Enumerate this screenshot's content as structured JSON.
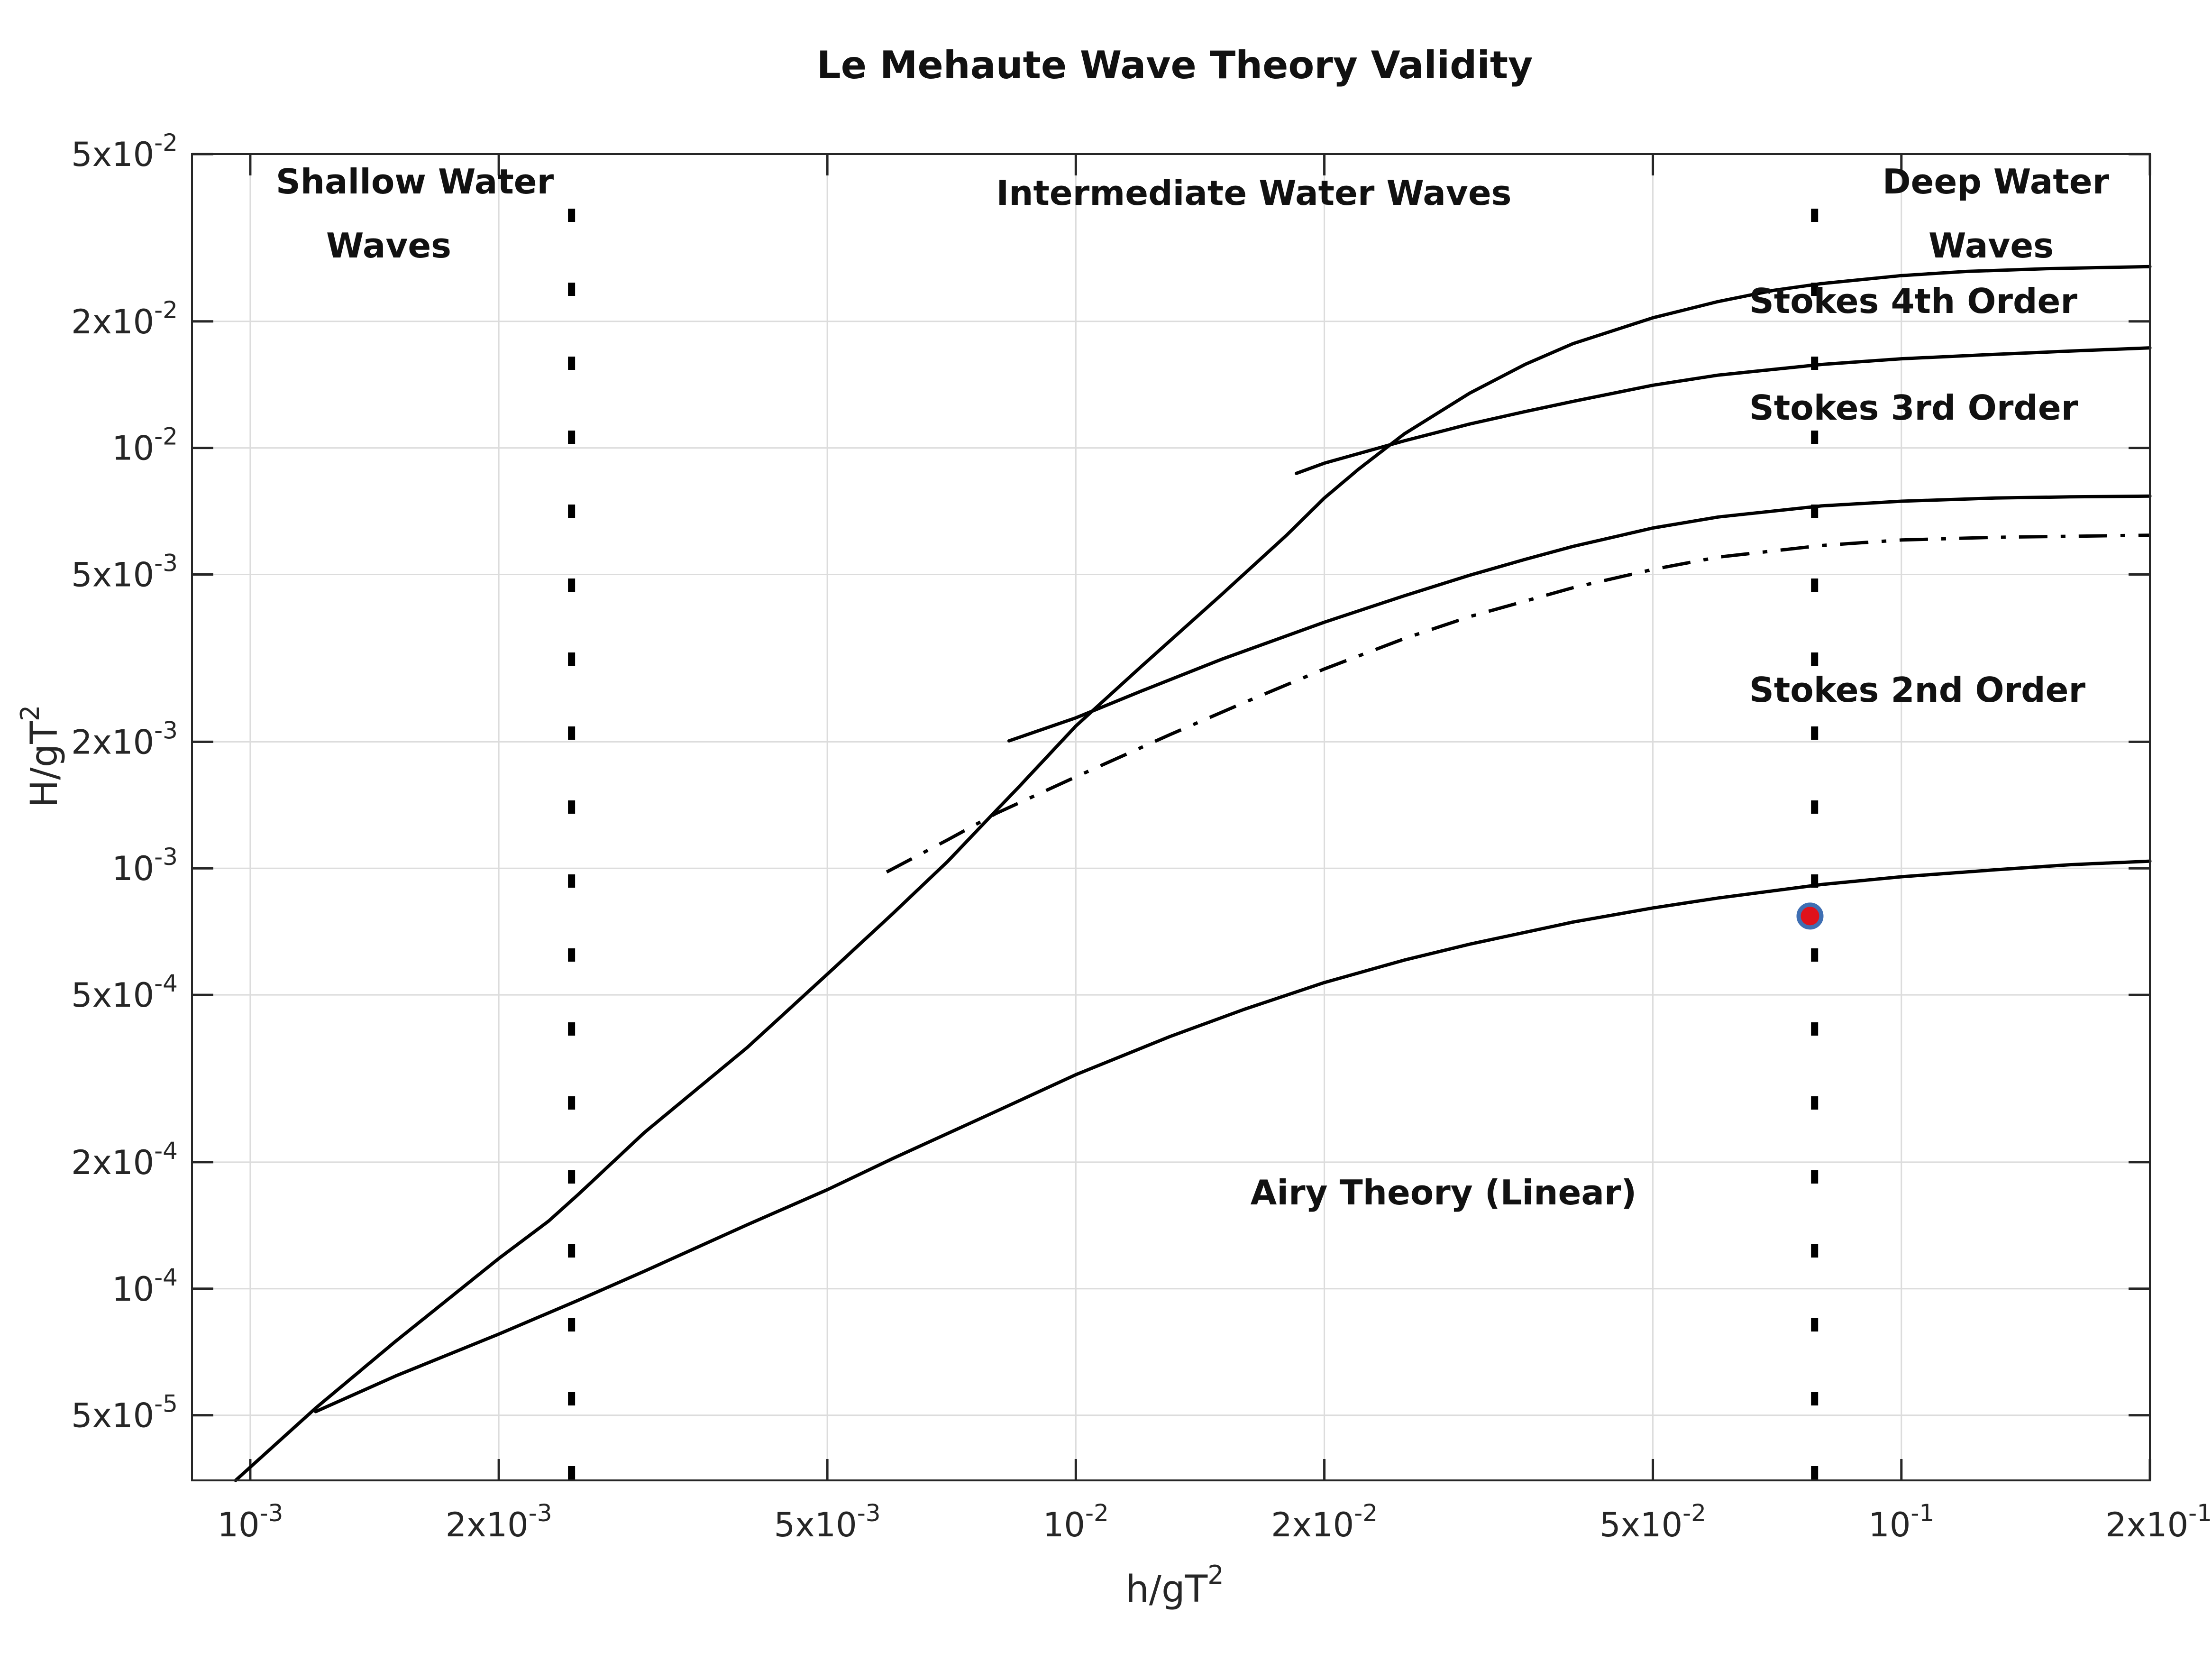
{
  "chart_data": {
    "type": "line",
    "title": "Le Mehaute Wave Theory Validity",
    "xlabel": "h/gT",
    "xlabel_sup": "2",
    "ylabel": "H/gT",
    "ylabel_sup": "2",
    "xscale": "log",
    "yscale": "log",
    "xlim": [
      0.00085,
      0.2
    ],
    "ylim": [
      3.5e-05,
      0.05
    ],
    "grid": true,
    "x_ticks": [
      {
        "value": 0.001,
        "mant": "10",
        "exp": "-3"
      },
      {
        "value": 0.002,
        "mant": "2x10",
        "exp": "-3"
      },
      {
        "value": 0.005,
        "mant": "5x10",
        "exp": "-3"
      },
      {
        "value": 0.01,
        "mant": "10",
        "exp": "-2"
      },
      {
        "value": 0.02,
        "mant": "2x10",
        "exp": "-2"
      },
      {
        "value": 0.05,
        "mant": "5x10",
        "exp": "-2"
      },
      {
        "value": 0.1,
        "mant": "10",
        "exp": "-1"
      },
      {
        "value": 0.2,
        "mant": "2x10",
        "exp": "-1"
      }
    ],
    "y_ticks": [
      {
        "value": 5e-05,
        "mant": "5x10",
        "exp": "-5"
      },
      {
        "value": 0.0001,
        "mant": "10",
        "exp": "-4"
      },
      {
        "value": 0.0002,
        "mant": "2x10",
        "exp": "-4"
      },
      {
        "value": 0.0005,
        "mant": "5x10",
        "exp": "-4"
      },
      {
        "value": 0.001,
        "mant": "10",
        "exp": "-3"
      },
      {
        "value": 0.002,
        "mant": "2x10",
        "exp": "-3"
      },
      {
        "value": 0.005,
        "mant": "5x10",
        "exp": "-3"
      },
      {
        "value": 0.01,
        "mant": "10",
        "exp": "-2"
      },
      {
        "value": 0.02,
        "mant": "2x10",
        "exp": "-2"
      },
      {
        "value": 0.05,
        "mant": "5x10",
        "exp": "-2"
      }
    ],
    "series": [
      {
        "style": "solid",
        "points": [
          [
            0.00096,
            3.5e-05
          ],
          [
            0.0012,
            5.2e-05
          ],
          [
            0.0015,
            7.5e-05
          ],
          [
            0.002,
            0.000118
          ],
          [
            0.0023,
            0.000145
          ],
          [
            0.0025,
            0.000168
          ],
          [
            0.003,
            0.000235
          ],
          [
            0.004,
            0.000375
          ],
          [
            0.005,
            0.00056
          ],
          [
            0.006,
            0.00078
          ],
          [
            0.007,
            0.00104
          ],
          [
            0.008,
            0.00137
          ],
          [
            0.0085,
            0.00155
          ],
          [
            0.01,
            0.00218
          ],
          [
            0.012,
            0.00302
          ],
          [
            0.015,
            0.00447
          ],
          [
            0.018,
            0.0062
          ],
          [
            0.02,
            0.0076
          ],
          [
            0.022,
            0.0089
          ],
          [
            0.025,
            0.0108
          ],
          [
            0.03,
            0.0135
          ],
          [
            0.035,
            0.0158
          ],
          [
            0.04,
            0.0177
          ],
          [
            0.05,
            0.0204
          ],
          [
            0.06,
            0.0223
          ],
          [
            0.07,
            0.0237
          ],
          [
            0.08,
            0.0246
          ],
          [
            0.1,
            0.0257
          ],
          [
            0.12,
            0.0263
          ],
          [
            0.15,
            0.0267
          ],
          [
            0.2,
            0.027
          ]
        ]
      },
      {
        "style": "solid",
        "points": [
          [
            0.0012,
            5.1e-05
          ],
          [
            0.0015,
            6.2e-05
          ],
          [
            0.002,
            7.8e-05
          ],
          [
            0.0025,
            9.4e-05
          ],
          [
            0.003,
            0.00011
          ],
          [
            0.004,
            0.000142
          ],
          [
            0.005,
            0.000172
          ],
          [
            0.006,
            0.000204
          ],
          [
            0.008,
            0.000264
          ],
          [
            0.01,
            0.000323
          ],
          [
            0.013,
            0.000398
          ],
          [
            0.016,
            0.000462
          ],
          [
            0.02,
            0.000535
          ],
          [
            0.025,
            0.000605
          ],
          [
            0.03,
            0.00066
          ],
          [
            0.04,
            0.000745
          ],
          [
            0.05,
            0.000805
          ],
          [
            0.06,
            0.00085
          ],
          [
            0.08,
            0.000915
          ],
          [
            0.1,
            0.000955
          ],
          [
            0.13,
            0.000992
          ],
          [
            0.16,
            0.00102
          ],
          [
            0.2,
            0.00104
          ]
        ]
      },
      {
        "style": "solid",
        "points": [
          [
            0.0083,
            0.00201
          ],
          [
            0.01,
            0.00228
          ],
          [
            0.012,
            0.00264
          ],
          [
            0.015,
            0.00314
          ],
          [
            0.02,
            0.00385
          ],
          [
            0.025,
            0.00445
          ],
          [
            0.03,
            0.00498
          ],
          [
            0.035,
            0.00543
          ],
          [
            0.04,
            0.00583
          ],
          [
            0.05,
            0.00645
          ],
          [
            0.06,
            0.00685
          ],
          [
            0.08,
            0.00728
          ],
          [
            0.1,
            0.00747
          ],
          [
            0.13,
            0.0076
          ],
          [
            0.16,
            0.00765
          ],
          [
            0.2,
            0.00768
          ]
        ]
      },
      {
        "style": "dashdot",
        "points": [
          [
            0.0059,
            0.00098
          ],
          [
            0.007,
            0.00117
          ],
          [
            0.008,
            0.00135
          ],
          [
            0.01,
            0.00165
          ],
          [
            0.013,
            0.00208
          ],
          [
            0.016,
            0.00248
          ],
          [
            0.02,
            0.00298
          ],
          [
            0.025,
            0.00352
          ],
          [
            0.03,
            0.00397
          ],
          [
            0.04,
            0.00465
          ],
          [
            0.05,
            0.00514
          ],
          [
            0.06,
            0.0055
          ],
          [
            0.08,
            0.00586
          ],
          [
            0.1,
            0.00604
          ],
          [
            0.13,
            0.00613
          ],
          [
            0.2,
            0.0062
          ]
        ]
      },
      {
        "style": "solid",
        "points": [
          [
            0.0185,
            0.0087
          ],
          [
            0.02,
            0.0092
          ],
          [
            0.025,
            0.0104
          ],
          [
            0.03,
            0.0114
          ],
          [
            0.035,
            0.0122
          ],
          [
            0.04,
            0.0129
          ],
          [
            0.05,
            0.0141
          ],
          [
            0.06,
            0.0149
          ],
          [
            0.08,
            0.0158
          ],
          [
            0.1,
            0.0163
          ],
          [
            0.13,
            0.0167
          ],
          [
            0.16,
            0.017
          ],
          [
            0.2,
            0.0173
          ]
        ]
      }
    ],
    "limit_lines_x": [
      0.00245,
      0.0785
    ],
    "point": {
      "x": 0.0775,
      "y": 0.00077,
      "fill": "#e0121b",
      "stroke": "#3f6fb3"
    },
    "annotations": {
      "shallow_1": "Shallow Water",
      "shallow_2": "Waves",
      "intermediate": "Intermediate Water Waves",
      "deep_1": "Deep Water",
      "deep_2": "Waves",
      "stokes4": "Stokes 4th Order",
      "stokes3": "Stokes 3rd Order",
      "stokes2": "Stokes 2nd Order",
      "airy": "Airy Theory (Linear)"
    }
  }
}
